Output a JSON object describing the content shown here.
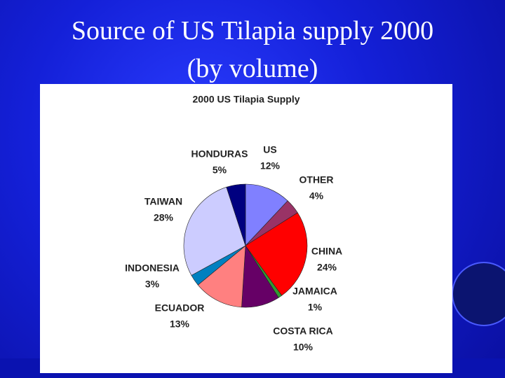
{
  "slide": {
    "title_lines": [
      "Source of US Tilapia supply 2000",
      "(by volume)"
    ]
  },
  "chart_data": {
    "type": "pie",
    "title": "2000 US Tilapia Supply",
    "categories": [
      "US",
      "OTHER",
      "CHINA",
      "JAMAICA",
      "COSTA RICA",
      "ECUADOR",
      "INDONESIA",
      "TAIWAN",
      "HONDURAS"
    ],
    "values": [
      12,
      4,
      24,
      1,
      10,
      13,
      3,
      28,
      5
    ],
    "value_labels": [
      "12%",
      "4%",
      "24%",
      "1%",
      "10%",
      "13%",
      "3%",
      "28%",
      "5%"
    ],
    "colors": [
      "#8080ff",
      "#993366",
      "#ff0000",
      "#339933",
      "#660066",
      "#ff8080",
      "#0080c0",
      "#ccccff",
      "#000080"
    ]
  }
}
